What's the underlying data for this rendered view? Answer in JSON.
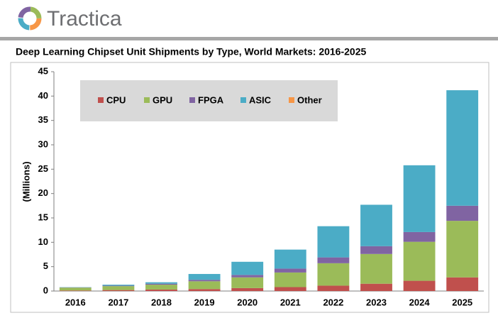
{
  "header": {
    "brand": "Tractica"
  },
  "chart_data": {
    "type": "stacked_bar",
    "title": "Deep Learning Chipset Unit Shipments by Type, World Markets: 2016-2025",
    "y_label": "(Millions)",
    "categories": [
      "2016",
      "2017",
      "2018",
      "2019",
      "2020",
      "2021",
      "2022",
      "2023",
      "2024",
      "2025"
    ],
    "series": [
      {
        "name": "CPU",
        "color": "#c0504d",
        "values": [
          0.1,
          0.2,
          0.3,
          0.4,
          0.6,
          0.8,
          1.1,
          1.5,
          2.1,
          2.8
        ]
      },
      {
        "name": "GPU",
        "color": "#9bbb59",
        "values": [
          0.6,
          0.8,
          1.0,
          1.6,
          2.2,
          3.0,
          4.6,
          6.1,
          8.0,
          11.6
        ]
      },
      {
        "name": "FPGA",
        "color": "#8064a2",
        "values": [
          0.05,
          0.1,
          0.2,
          0.3,
          0.5,
          0.8,
          1.2,
          1.6,
          2.0,
          3.1
        ]
      },
      {
        "name": "ASIC",
        "color": "#4bacc6",
        "values": [
          0.05,
          0.2,
          0.3,
          1.2,
          2.7,
          3.9,
          6.4,
          8.5,
          13.7,
          23.7
        ]
      },
      {
        "name": "Other",
        "color": "#f79646",
        "values": [
          0,
          0,
          0,
          0,
          0,
          0,
          0,
          0,
          0,
          0
        ]
      }
    ],
    "ylim": [
      0,
      45
    ],
    "yticks": [
      0,
      5,
      10,
      15,
      20,
      25,
      30,
      35,
      40,
      45
    ],
    "grid": false,
    "legend": "top-left"
  }
}
